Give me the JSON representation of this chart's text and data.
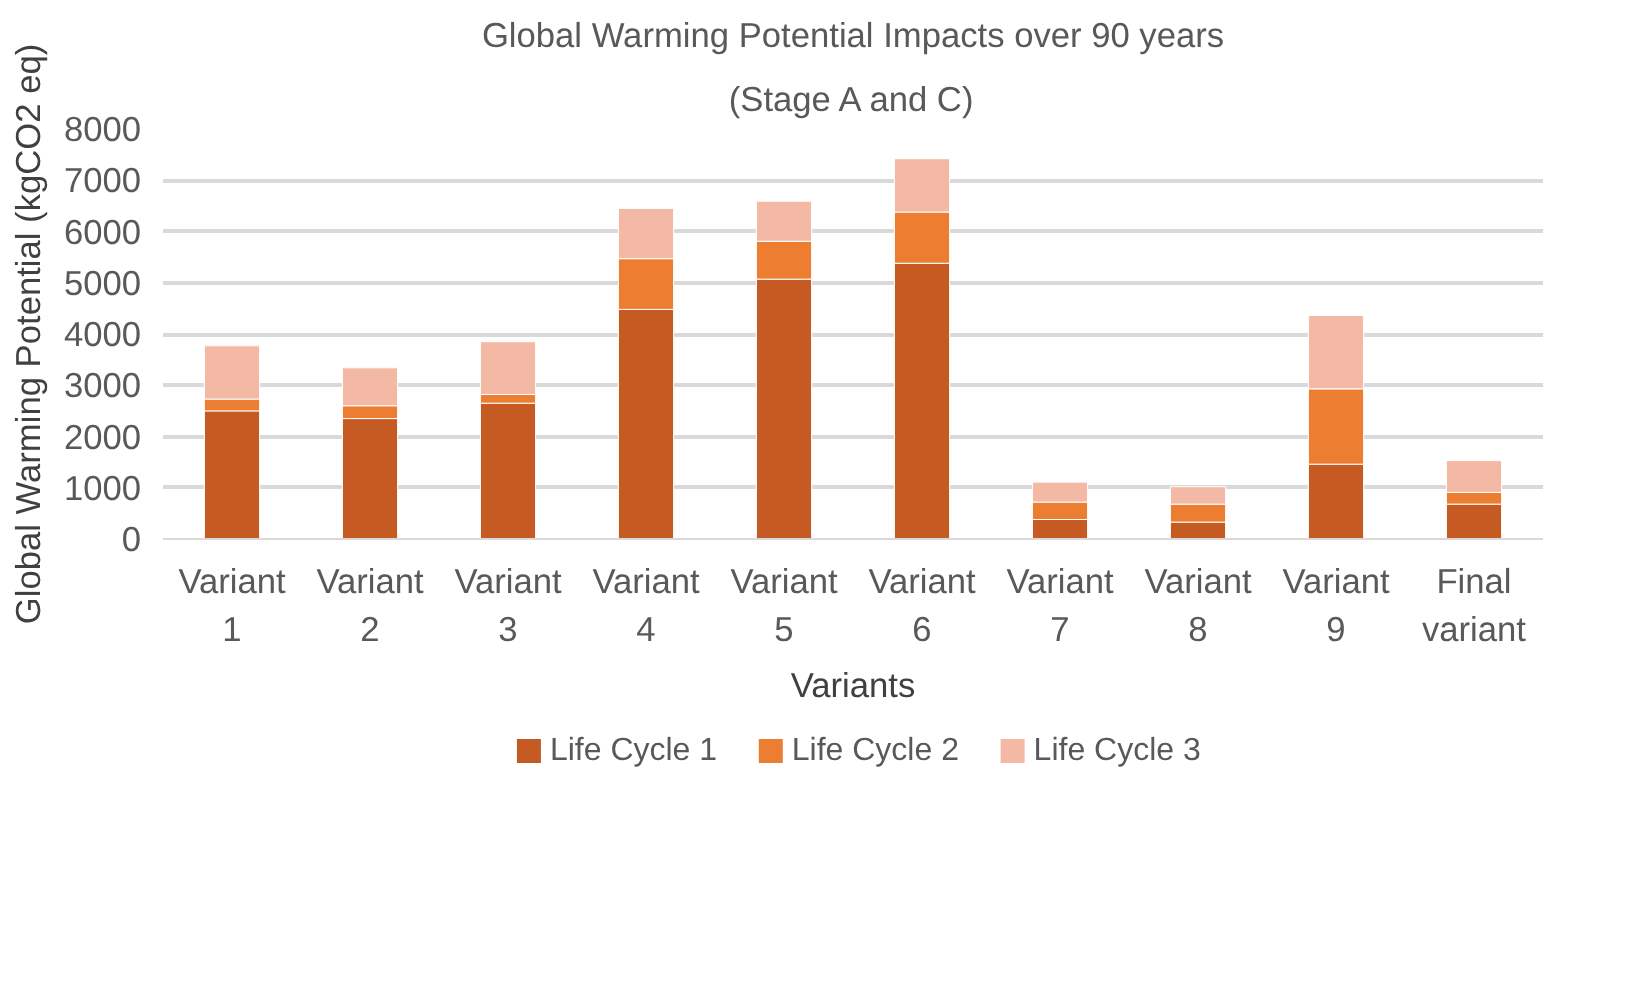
{
  "chart_data": {
    "type": "bar",
    "title": "Global Warming Potential Impacts over 90 years",
    "subtitle": "(Stage A and C)",
    "xlabel": "Variants",
    "ylabel": "Global Warming Potential (kgCO2 eq)",
    "categories": [
      "Variant 1",
      "Variant 2",
      "Variant 3",
      "Variant 4",
      "Variant 5",
      "Variant 6",
      "Variant 7",
      "Variant 8",
      "Variant 9",
      "Final variant"
    ],
    "stacked": true,
    "series": [
      {
        "name": "Life Cycle 1",
        "color": "#c55a22",
        "values": [
          2500,
          2350,
          2650,
          4480,
          5070,
          5380,
          380,
          330,
          1460,
          680
        ]
      },
      {
        "name": "Life Cycle 2",
        "color": "#ed7d31",
        "values": [
          230,
          250,
          170,
          990,
          740,
          1000,
          340,
          350,
          1470,
          230
        ]
      },
      {
        "name": "Life Cycle 3",
        "color": "#f4b9a4",
        "values": [
          1040,
          740,
          1030,
          980,
          780,
          1040,
          390,
          340,
          1430,
          620
        ]
      }
    ],
    "ylim": [
      0,
      8000
    ],
    "yticks": [
      0,
      1000,
      2000,
      3000,
      4000,
      5000,
      6000,
      7000,
      8000
    ],
    "grid": "y",
    "legend": "bottom"
  }
}
